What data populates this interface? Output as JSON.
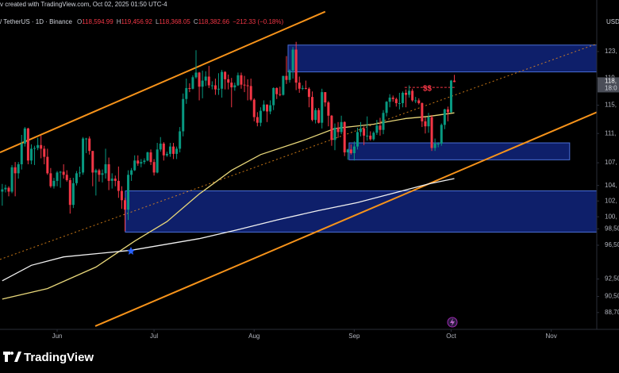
{
  "chart_data": {
    "type": "candlestick",
    "title": "v created with TradingView.com, Oct 02, 2025 01:50 UTC-4",
    "symbol": "/ TetherUS · 1D · Binance",
    "ohlc": [
      {
        "key": "O",
        "value": "118,594.99"
      },
      {
        "key": "H",
        "value": "119,456.92"
      },
      {
        "key": "L",
        "value": "118,368.05"
      },
      {
        "key": "C",
        "value": "118,382.66"
      }
    ],
    "change": "−212.33 (−0.18%)",
    "currency": "USD",
    "logo": "TradingView",
    "up_color": "#089981",
    "down_color": "#f23645",
    "log_scale": true,
    "grid": false,
    "xlim": [
      -0.7,
      184.1
    ],
    "ylim": [
      86850,
      131200
    ],
    "xticks": [
      {
        "value": 17,
        "label": "Jun"
      },
      {
        "value": 47,
        "label": "Jul"
      },
      {
        "value": 78,
        "label": "Aug"
      },
      {
        "value": 109,
        "label": "Sep"
      },
      {
        "value": 139,
        "label": "Oct"
      },
      {
        "value": 170,
        "label": "Nov"
      }
    ],
    "yticks": [
      {
        "value": 123000,
        "label": "123,"
      },
      {
        "value": 119000,
        "label": "119,"
      },
      {
        "value": 115000,
        "label": "115,"
      },
      {
        "value": 111000,
        "label": "111,"
      },
      {
        "value": 107000,
        "label": "107,"
      },
      {
        "value": 104000,
        "label": "104,"
      },
      {
        "value": 102000,
        "label": "102,"
      },
      {
        "value": 100000,
        "label": "100,"
      },
      {
        "value": 98500,
        "label": "98,50"
      },
      {
        "value": 96500,
        "label": "96,50"
      },
      {
        "value": 92500,
        "label": "92,50"
      },
      {
        "value": 90500,
        "label": "90,50"
      },
      {
        "value": 88700,
        "label": "88,70"
      }
    ],
    "price_tag": {
      "label": "118,",
      "countdown": "18:0"
    },
    "candles": [
      [
        103200,
        104200,
        101400,
        103500
      ],
      [
        103500,
        104100,
        103100,
        103700
      ],
      [
        103700,
        103900,
        102600,
        103200
      ],
      [
        103200,
        106700,
        103000,
        106400
      ],
      [
        106400,
        107100,
        102600,
        105600
      ],
      [
        105600,
        107100,
        104900,
        106800
      ],
      [
        106800,
        110800,
        106100,
        109600
      ],
      [
        109600,
        111900,
        109200,
        111700
      ],
      [
        111700,
        111800,
        106800,
        107300
      ],
      [
        107300,
        109500,
        106800,
        108900
      ],
      [
        108900,
        109300,
        106700,
        109000
      ],
      [
        109000,
        110400,
        108700,
        109400
      ],
      [
        109400,
        110700,
        107600,
        108900
      ],
      [
        108900,
        109300,
        106800,
        107800
      ],
      [
        107800,
        108900,
        105400,
        105600
      ],
      [
        105600,
        106300,
        103700,
        103900
      ],
      [
        103900,
        105000,
        103600,
        104600
      ],
      [
        104600,
        105900,
        103900,
        105700
      ],
      [
        105700,
        105900,
        103700,
        105800
      ],
      [
        105800,
        106800,
        104900,
        105400
      ],
      [
        105400,
        106000,
        104500,
        104700
      ],
      [
        104700,
        105000,
        100400,
        101500
      ],
      [
        101500,
        105000,
        101100,
        104300
      ],
      [
        104300,
        105900,
        104000,
        105600
      ],
      [
        105600,
        106500,
        105100,
        105700
      ],
      [
        105700,
        110500,
        105400,
        110300
      ],
      [
        110300,
        110400,
        108300,
        110300
      ],
      [
        110300,
        110600,
        108100,
        108600
      ],
      [
        108600,
        108600,
        103900,
        105700
      ],
      [
        105700,
        106200,
        102700,
        106000
      ],
      [
        106000,
        106200,
        104500,
        105400
      ],
      [
        105400,
        106100,
        104400,
        105600
      ],
      [
        105600,
        108900,
        104900,
        106800
      ],
      [
        106800,
        107700,
        103400,
        104600
      ],
      [
        104600,
        105600,
        103600,
        104900
      ],
      [
        104900,
        105300,
        103900,
        104600
      ],
      [
        104600,
        106500,
        102400,
        103300
      ],
      [
        103300,
        103900,
        101000,
        102100
      ],
      [
        102100,
        102400,
        98200,
        100900
      ],
      [
        100900,
        106000,
        99600,
        105400
      ],
      [
        105400,
        106300,
        104600,
        106000
      ],
      [
        106000,
        108000,
        105900,
        107300
      ],
      [
        107300,
        108000,
        106600,
        106900
      ],
      [
        106900,
        107500,
        106400,
        107100
      ],
      [
        107100,
        107600,
        106800,
        107300
      ],
      [
        107300,
        108500,
        107200,
        108400
      ],
      [
        108400,
        108800,
        106700,
        107100
      ],
      [
        107100,
        107500,
        105300,
        105700
      ],
      [
        105700,
        109700,
        105600,
        108800
      ],
      [
        108800,
        110500,
        108500,
        109600
      ],
      [
        109600,
        109800,
        107300,
        108000
      ],
      [
        108000,
        108500,
        107800,
        108200
      ],
      [
        108200,
        109700,
        107800,
        109200
      ],
      [
        109200,
        109700,
        107500,
        108200
      ],
      [
        108200,
        109200,
        107500,
        108900
      ],
      [
        108900,
        111900,
        108400,
        111300
      ],
      [
        111300,
        116700,
        110600,
        115900
      ],
      [
        115900,
        118900,
        115200,
        117500
      ],
      [
        117500,
        118200,
        116900,
        117400
      ],
      [
        117400,
        119400,
        117300,
        119100
      ],
      [
        119100,
        123200,
        118900,
        119800
      ],
      [
        119800,
        119900,
        115700,
        117700
      ],
      [
        117700,
        120100,
        116000,
        118600
      ],
      [
        118600,
        120000,
        117800,
        119200
      ],
      [
        119200,
        120800,
        117500,
        117900
      ],
      [
        117900,
        118500,
        117300,
        117900
      ],
      [
        117900,
        118900,
        116500,
        117300
      ],
      [
        117300,
        119700,
        116500,
        117400
      ],
      [
        117400,
        120200,
        116100,
        119900
      ],
      [
        119900,
        120000,
        117300,
        118800
      ],
      [
        118800,
        119500,
        117300,
        118300
      ],
      [
        118300,
        119000,
        114700,
        117600
      ],
      [
        117600,
        118300,
        117100,
        117900
      ],
      [
        117900,
        119800,
        117800,
        119400
      ],
      [
        119400,
        119800,
        117400,
        118000
      ],
      [
        118000,
        119300,
        116900,
        117900
      ],
      [
        117900,
        118800,
        115700,
        117800
      ],
      [
        117800,
        118900,
        115600,
        115800
      ],
      [
        115800,
        116000,
        112700,
        113300
      ],
      [
        113300,
        114000,
        112000,
        112500
      ],
      [
        112500,
        114700,
        112000,
        114200
      ],
      [
        114200,
        115700,
        114100,
        115100
      ],
      [
        115100,
        115100,
        112600,
        114100
      ],
      [
        114100,
        115700,
        113700,
        115000
      ],
      [
        115000,
        117600,
        114300,
        117500
      ],
      [
        117500,
        117600,
        115900,
        116600
      ],
      [
        116600,
        117700,
        116300,
        116500
      ],
      [
        116500,
        119300,
        116400,
        119300
      ],
      [
        119300,
        122300,
        118100,
        118700
      ],
      [
        118700,
        120300,
        118300,
        120100
      ],
      [
        120100,
        123700,
        118900,
        123300
      ],
      [
        123300,
        124500,
        117200,
        118300
      ],
      [
        118300,
        119200,
        116800,
        117400
      ],
      [
        117400,
        117900,
        117200,
        117500
      ],
      [
        117500,
        118600,
        117300,
        117400
      ],
      [
        117400,
        117600,
        114700,
        116200
      ],
      [
        116200,
        117000,
        112700,
        112900
      ],
      [
        112900,
        114600,
        112400,
        114300
      ],
      [
        114300,
        114600,
        112400,
        112500
      ],
      [
        112500,
        117400,
        111700,
        116900
      ],
      [
        116900,
        116900,
        114800,
        115400
      ],
      [
        115400,
        115600,
        112000,
        113500
      ],
      [
        113500,
        113600,
        109300,
        110100
      ],
      [
        110100,
        112400,
        108700,
        111800
      ],
      [
        111800,
        112600,
        110400,
        111200
      ],
      [
        111200,
        113500,
        110900,
        112600
      ],
      [
        112600,
        112700,
        107900,
        108400
      ],
      [
        108400,
        108900,
        107400,
        108800
      ],
      [
        108800,
        109500,
        108100,
        108300
      ],
      [
        108300,
        109900,
        107300,
        109200
      ],
      [
        109200,
        111800,
        108800,
        111200
      ],
      [
        111200,
        112600,
        110600,
        111700
      ],
      [
        111700,
        112000,
        109400,
        110700
      ],
      [
        110700,
        113400,
        110000,
        110700
      ],
      [
        110700,
        111300,
        110000,
        110200
      ],
      [
        110200,
        111300,
        110000,
        111100
      ],
      [
        111100,
        112900,
        110800,
        112100
      ],
      [
        112100,
        113200,
        110700,
        111500
      ],
      [
        111500,
        114300,
        110900,
        113900
      ],
      [
        113900,
        115600,
        113400,
        115500
      ],
      [
        115500,
        116600,
        114700,
        116100
      ],
      [
        116100,
        116400,
        115500,
        115900
      ],
      [
        115900,
        116100,
        114800,
        115300
      ],
      [
        115300,
        116800,
        114400,
        115300
      ],
      [
        115300,
        117000,
        114700,
        116800
      ],
      [
        116800,
        117300,
        114700,
        116500
      ],
      [
        116500,
        117900,
        116100,
        117100
      ],
      [
        117100,
        117400,
        115500,
        115700
      ],
      [
        115700,
        116200,
        115300,
        115700
      ],
      [
        115700,
        116000,
        115100,
        115300
      ],
      [
        115300,
        115400,
        111900,
        112700
      ],
      [
        112700,
        113300,
        111000,
        112000
      ],
      [
        112000,
        113900,
        111100,
        113300
      ],
      [
        113300,
        113600,
        108600,
        109000
      ],
      [
        109000,
        110300,
        108600,
        109600
      ],
      [
        109600,
        109800,
        109100,
        109600
      ],
      [
        109600,
        112400,
        109300,
        112200
      ],
      [
        112200,
        114500,
        111600,
        114400
      ],
      [
        114400,
        114800,
        112700,
        114000
      ],
      [
        114000,
        118700,
        113900,
        118600
      ],
      [
        118594.99,
        119456.92,
        118368.05,
        118382.66
      ]
    ],
    "series": [
      {
        "color": "#e8d77a",
        "x": [
          0,
          14,
          29,
          41,
          51,
          61,
          71,
          80,
          93,
          103,
          115,
          125,
          132,
          140
        ],
        "values": [
          90200,
          91400,
          93900,
          97000,
          99400,
          102900,
          106000,
          108100,
          110000,
          111700,
          112300,
          113100,
          113400,
          113900
        ]
      },
      {
        "color": "#f0f0f0",
        "x": [
          0,
          9,
          19,
          40,
          61,
          73,
          85,
          98,
          110,
          122,
          132,
          140
        ],
        "values": [
          92300,
          94100,
          95100,
          95900,
          97300,
          98400,
          99600,
          100800,
          101800,
          103100,
          104200,
          104900
        ]
      }
    ],
    "boxes": [
      {
        "x": [
          88.5,
          184.1
        ],
        "y": [
          119900,
          124000
        ]
      },
      {
        "x": [
          107.4,
          175.7
        ],
        "y": [
          107400,
          109700
        ]
      },
      {
        "x": [
          38.1,
          184.1
        ],
        "y": [
          98100,
          103300
        ]
      }
    ],
    "trendlines": [
      {
        "color": "#f7931a",
        "dashed": false,
        "x": [
          -0.7,
          100
        ],
        "y": [
          108400,
          129300
        ]
      },
      {
        "color": "#f7931a",
        "dashed": false,
        "x": [
          28.8,
          184.1
        ],
        "y": [
          87200,
          114000
        ]
      },
      {
        "color": "#f7931a",
        "dashed": true,
        "x": [
          -0.7,
          184.1
        ],
        "y": [
          94800,
          124200
        ]
      }
    ],
    "level": {
      "text": "$$",
      "color": "#f23645",
      "x": [
        124.6,
        140.6
      ],
      "y": 117600
    }
  }
}
